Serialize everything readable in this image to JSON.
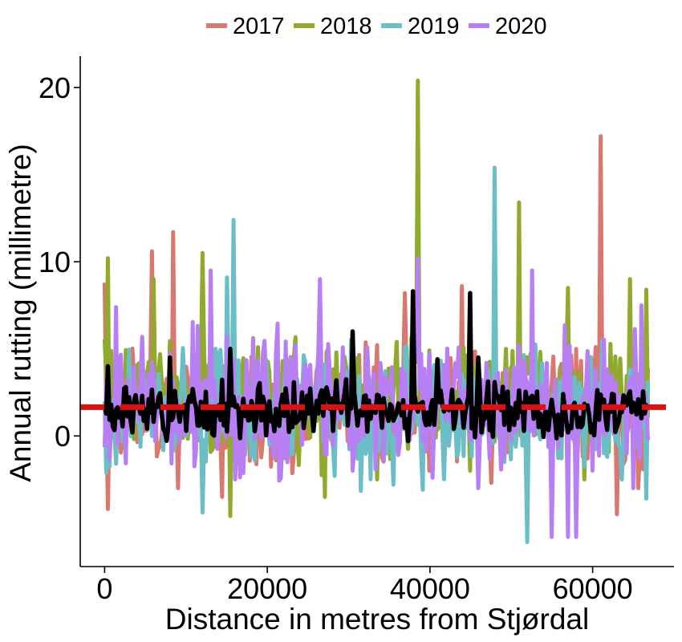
{
  "chart_data": {
    "type": "line",
    "title": "",
    "xlabel": "Distance in metres from Stjørdal",
    "ylabel": "Annual rutting (millimetre)",
    "xlim": [
      -3000,
      70000
    ],
    "ylim": [
      -7.5,
      21.8
    ],
    "xticks": [
      0,
      20000,
      40000,
      60000
    ],
    "xtick_labels": [
      "0",
      "20000",
      "40000",
      "60000"
    ],
    "yticks": [
      0,
      10,
      20
    ],
    "ytick_labels": [
      "0",
      "10",
      "20"
    ],
    "grid": false,
    "legend_position": "top",
    "x_start": 0,
    "x_end": 66800,
    "n_points": 334,
    "reference_line": {
      "y": 1.65,
      "style": "dashed",
      "color": "#dd1111"
    },
    "series": [
      {
        "name": "2017",
        "color": "#d9786f",
        "seed": 17,
        "base": 1.7,
        "spread": 1.5,
        "spikes": [
          [
            0,
            8.8
          ],
          [
            400,
            -4.2
          ],
          [
            5800,
            10.6
          ],
          [
            8500,
            11.7
          ],
          [
            9000,
            -3.0
          ],
          [
            14500,
            -3.5
          ],
          [
            21000,
            -1.4
          ],
          [
            37000,
            8.2
          ],
          [
            40000,
            -2.0
          ],
          [
            44000,
            8.6
          ],
          [
            47500,
            -2.7
          ],
          [
            58000,
            5.0
          ],
          [
            61000,
            17.2
          ],
          [
            63000,
            -4.5
          ],
          [
            65500,
            -3.0
          ]
        ]
      },
      {
        "name": "2018",
        "color": "#8faa2c",
        "seed": 29,
        "base": 2.2,
        "spread": 1.6,
        "spikes": [
          [
            500,
            10.2
          ],
          [
            6000,
            9.0
          ],
          [
            12000,
            10.5
          ],
          [
            15500,
            -4.6
          ],
          [
            27000,
            -3.5
          ],
          [
            33500,
            -2.5
          ],
          [
            38500,
            20.4
          ],
          [
            45000,
            -2.0
          ],
          [
            51000,
            13.4
          ],
          [
            57000,
            8.5
          ],
          [
            59000,
            -2.5
          ],
          [
            64500,
            9.0
          ],
          [
            66500,
            8.4
          ]
        ]
      },
      {
        "name": "2019",
        "color": "#6bbec6",
        "seed": 41,
        "base": 1.3,
        "spread": 1.7,
        "spikes": [
          [
            300,
            -2.1
          ],
          [
            1500,
            -1.6
          ],
          [
            12000,
            -4.4
          ],
          [
            15000,
            9.1
          ],
          [
            15800,
            12.4
          ],
          [
            21500,
            -1.2
          ],
          [
            35500,
            -2.8
          ],
          [
            48000,
            15.4
          ],
          [
            52000,
            -6.1
          ],
          [
            55000,
            -4.0
          ],
          [
            63500,
            -2.5
          ],
          [
            66500,
            -3.6
          ]
        ]
      },
      {
        "name": "2020",
        "color": "#b87ff5",
        "seed": 53,
        "base": 1.8,
        "spread": 1.9,
        "spikes": [
          [
            1500,
            7.4
          ],
          [
            13000,
            9.5
          ],
          [
            16000,
            -2.5
          ],
          [
            26500,
            9.0
          ],
          [
            30500,
            -2.0
          ],
          [
            38500,
            10.2
          ],
          [
            46000,
            -3.0
          ],
          [
            52500,
            9.5
          ],
          [
            55000,
            -5.8
          ],
          [
            57000,
            -5.8
          ],
          [
            58000,
            -5.8
          ],
          [
            60000,
            -2.0
          ],
          [
            65000,
            -3.0
          ],
          [
            66000,
            7.5
          ]
        ]
      },
      {
        "name": "mean",
        "color": "#000000",
        "seed": 67,
        "base": 1.5,
        "spread": 0.7,
        "spikes": [
          [
            500,
            4.0
          ],
          [
            8000,
            4.5
          ],
          [
            10000,
            0.3
          ],
          [
            15500,
            5.0
          ],
          [
            30500,
            6.0
          ],
          [
            38000,
            8.3
          ],
          [
            41000,
            4.4
          ],
          [
            45000,
            8.2
          ],
          [
            46000,
            4.5
          ],
          [
            57000,
            0.2
          ]
        ]
      }
    ]
  },
  "legend": {
    "items": [
      {
        "label": "2017",
        "color": "#d9786f"
      },
      {
        "label": "2018",
        "color": "#8faa2c"
      },
      {
        "label": "2019",
        "color": "#6bbec6"
      },
      {
        "label": "2020",
        "color": "#b87ff5"
      }
    ]
  }
}
